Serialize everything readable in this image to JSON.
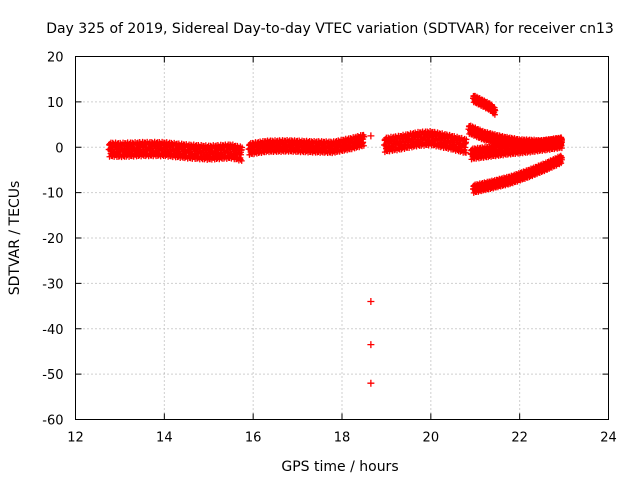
{
  "chart_data": {
    "type": "scatter",
    "title": "Day 325 of 2019, Sidereal Day-to-day VTEC variation (SDTVAR) for receiver cn13",
    "xlabel": "GPS time / hours",
    "ylabel": "SDTVAR / TECUs",
    "xlim": [
      12,
      24
    ],
    "ylim": [
      -60,
      20
    ],
    "xticks": [
      12,
      14,
      16,
      18,
      20,
      22,
      24
    ],
    "yticks": [
      -60,
      -50,
      -40,
      -30,
      -20,
      -10,
      0,
      10,
      20
    ],
    "grid": true,
    "legend": "none",
    "marker": "+",
    "color": "#ff0000",
    "segments": [
      {
        "x": [
          12.75,
          13.0,
          13.5,
          14.0,
          14.5,
          15.0,
          15.5,
          15.75
        ],
        "y": [
          -0.5,
          -0.6,
          -0.4,
          -0.4,
          -0.9,
          -1.2,
          -0.9,
          -1.5
        ],
        "spread": 1.6
      },
      {
        "x": [
          15.9,
          16.3,
          16.8,
          17.3,
          17.8,
          18.2,
          18.5
        ],
        "y": [
          -0.4,
          0.2,
          0.3,
          0.1,
          0.0,
          0.8,
          1.6
        ],
        "spread": 1.3
      },
      {
        "x": [
          18.95,
          19.3,
          19.7,
          20.0,
          20.4,
          20.8
        ],
        "y": [
          0.5,
          1.0,
          1.8,
          2.0,
          1.2,
          0.2
        ],
        "spread": 1.6
      },
      {
        "x": [
          20.9,
          21.3,
          21.7,
          22.2,
          22.6,
          22.95
        ],
        "y": [
          -1.5,
          -1.0,
          -0.5,
          0.0,
          0.5,
          1.0
        ],
        "spread": 1.2
      },
      {
        "x": [
          20.85,
          21.2,
          21.6,
          22.0,
          22.5,
          22.95
        ],
        "y": [
          4.0,
          2.5,
          1.5,
          0.8,
          0.6,
          1.2
        ],
        "spread": 1.0
      },
      {
        "x": [
          20.95,
          21.15,
          21.35,
          21.45
        ],
        "y": [
          10.8,
          9.8,
          8.8,
          7.8
        ],
        "spread": 0.8
      },
      {
        "x": [
          20.95,
          21.4,
          21.8,
          22.2,
          22.6,
          22.95
        ],
        "y": [
          -9.2,
          -8.2,
          -7.2,
          -5.8,
          -4.2,
          -2.6
        ],
        "spread": 0.9
      }
    ],
    "points": [
      {
        "x": 18.65,
        "y": 2.5
      },
      {
        "x": 18.65,
        "y": -34
      },
      {
        "x": 18.65,
        "y": -43.5
      },
      {
        "x": 18.65,
        "y": -52
      }
    ]
  }
}
